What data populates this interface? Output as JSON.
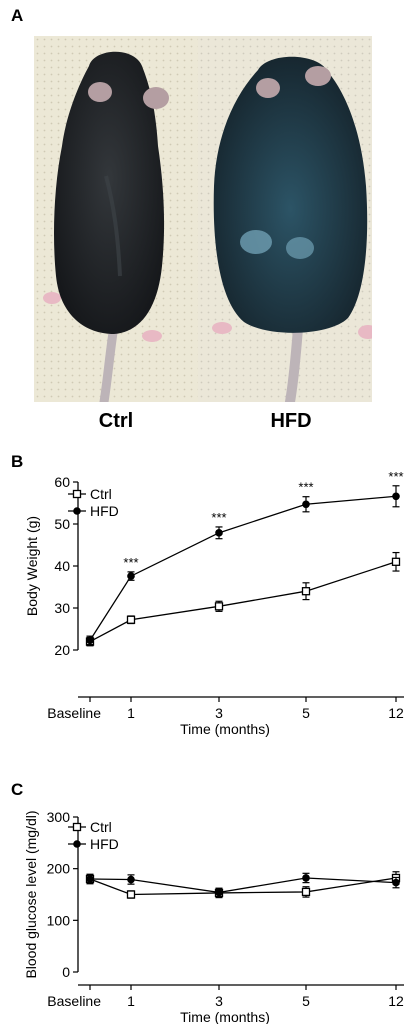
{
  "panels": {
    "a_letter": "A",
    "b_letter": "B",
    "c_letter": "C"
  },
  "photo_captions": {
    "left": "Ctrl",
    "right": "HFD"
  },
  "colors": {
    "background_ctrl": "#ece8d6",
    "background_hfd": "#ebe7d8",
    "mouse_ctrl": "#1e2124",
    "mouse_hfd": "#1d3340",
    "line": "#000000"
  },
  "chart_data": [
    {
      "type": "line",
      "title": "",
      "xlabel": "Time (months)",
      "ylabel": "Body Weight (g)",
      "categories": [
        "Baseline",
        "1",
        "3",
        "5",
        "12"
      ],
      "ylim": [
        20,
        60
      ],
      "yticks": [
        20,
        30,
        40,
        50,
        60
      ],
      "legend": "top-left",
      "series": [
        {
          "name": "Ctrl",
          "marker": "open-square",
          "values": [
            22.0,
            27.2,
            30.4,
            34.0,
            41.0
          ],
          "errors": [
            1.0,
            0.9,
            1.2,
            2.0,
            2.2
          ]
        },
        {
          "name": "HFD",
          "marker": "filled-circle",
          "values": [
            22.3,
            37.6,
            47.9,
            54.7,
            56.6
          ],
          "errors": [
            1.0,
            1.0,
            1.4,
            1.8,
            2.5
          ]
        }
      ],
      "annotations": [
        {
          "category": "1",
          "text": "***"
        },
        {
          "category": "3",
          "text": "***"
        },
        {
          "category": "5",
          "text": "***"
        },
        {
          "category": "12",
          "text": "***"
        }
      ]
    },
    {
      "type": "line",
      "title": "",
      "xlabel": "Time (months)",
      "ylabel": "Blood glucose level (mg/dl)",
      "categories": [
        "Baseline",
        "1",
        "3",
        "5",
        "12"
      ],
      "ylim": [
        0,
        300
      ],
      "yticks": [
        0,
        100,
        200,
        300
      ],
      "legend": "top-left",
      "series": [
        {
          "name": "Ctrl",
          "marker": "open-square",
          "values": [
            180,
            150,
            153,
            155,
            182
          ],
          "errors": [
            9,
            7,
            9,
            10,
            12
          ]
        },
        {
          "name": "HFD",
          "marker": "filled-circle",
          "values": [
            180,
            179,
            154,
            182,
            173
          ],
          "errors": [
            9,
            9,
            8,
            9,
            10
          ]
        }
      ],
      "annotations": []
    }
  ]
}
